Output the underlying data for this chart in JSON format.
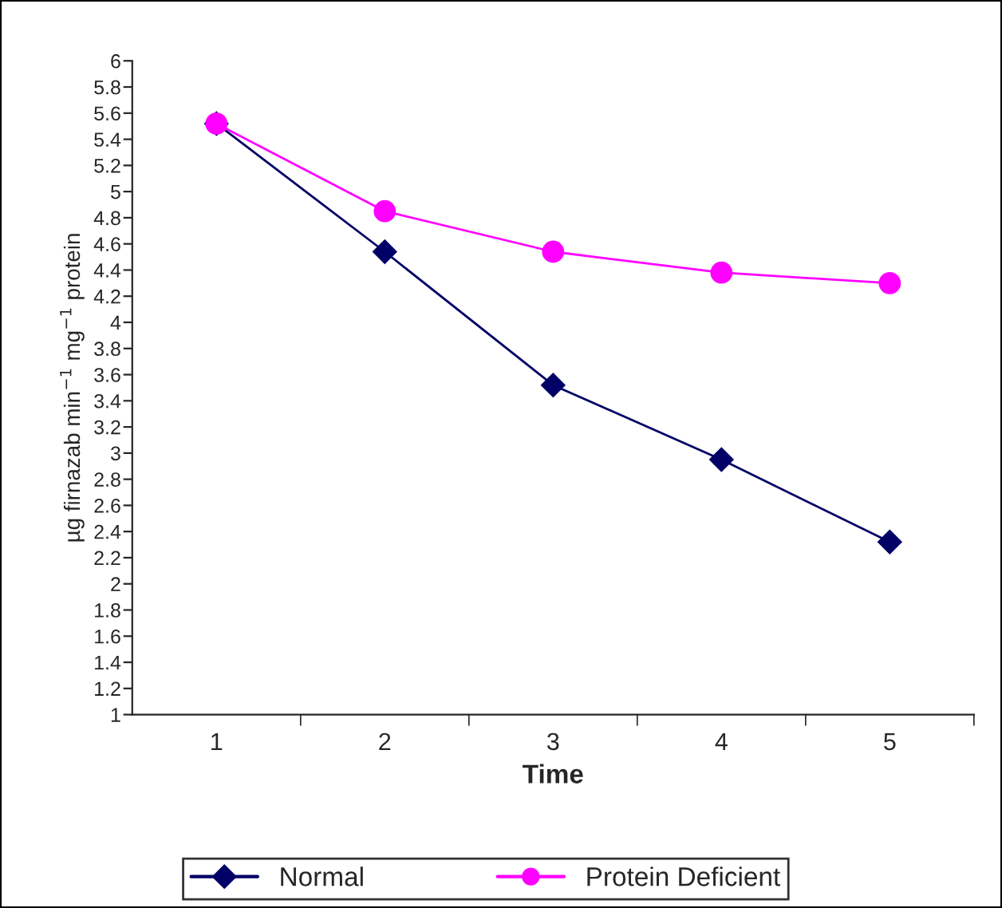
{
  "chart_data": {
    "type": "line",
    "xlabel": "Time",
    "ylabel": "µg firnazab min$^{−1}$ mg$^{−1}$ protein",
    "categories": [
      "1",
      "2",
      "3",
      "4",
      "5"
    ],
    "series": [
      {
        "name": "Normal",
        "color": "#000066",
        "marker": "diamond",
        "values": [
          5.52,
          4.54,
          3.52,
          2.95,
          2.32
        ]
      },
      {
        "name": "Protein Deficient",
        "color": "#ff00ff",
        "marker": "circle",
        "values": [
          5.52,
          4.85,
          4.54,
          4.38,
          4.3
        ]
      }
    ],
    "ylim": [
      1,
      6
    ],
    "yticks": [
      1,
      1.2,
      1.4,
      1.6,
      1.8,
      2,
      2.2,
      2.4,
      2.6,
      2.8,
      3,
      3.2,
      3.4,
      3.6,
      3.8,
      4,
      4.2,
      4.4,
      4.6,
      4.8,
      5,
      5.2,
      5.4,
      5.6,
      5.8,
      6
    ],
    "grid": false,
    "legend": "bottom",
    "line_style": "solid"
  }
}
